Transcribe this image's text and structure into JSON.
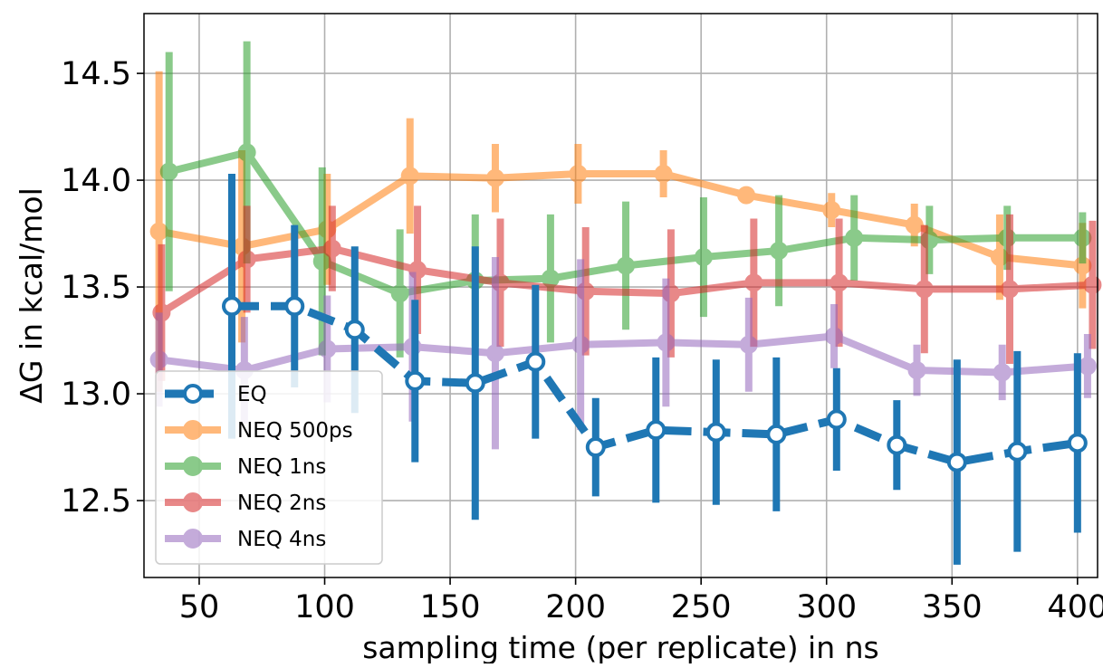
{
  "chart_data": {
    "type": "line",
    "title": "",
    "xlabel": "sampling time (per replicate) in ns",
    "ylabel": "ΔG in kcal/mol",
    "xlim": [
      28,
      408
    ],
    "ylim": [
      12.14,
      14.78
    ],
    "xticks": [
      50,
      100,
      150,
      200,
      250,
      300,
      350,
      400
    ],
    "yticks": [
      12.5,
      13.0,
      13.5,
      14.0,
      14.5
    ],
    "xtick_labels": [
      "50",
      "100",
      "150",
      "200",
      "250",
      "300",
      "350",
      "400"
    ],
    "ytick_labels": [
      "12.5",
      "13.0",
      "13.5",
      "14.0",
      "14.5"
    ],
    "grid": true,
    "legend_position": "lower-left",
    "series": [
      {
        "name": "EQ",
        "color": "#1f77b4",
        "linestyle": "dashed",
        "x": [
          63,
          88,
          112,
          136,
          160,
          184,
          208,
          232,
          256,
          280,
          304,
          328,
          352,
          376,
          400
        ],
        "y": [
          13.41,
          13.41,
          13.3,
          13.06,
          13.05,
          13.15,
          12.75,
          12.83,
          12.82,
          12.81,
          12.88,
          12.76,
          12.68,
          12.73,
          12.77
        ],
        "err": [
          0.62,
          0.38,
          0.39,
          0.38,
          0.64,
          0.36,
          0.23,
          0.34,
          0.34,
          0.36,
          0.24,
          0.21,
          0.48,
          0.47,
          0.42
        ]
      },
      {
        "name": "NEQ 500ps",
        "color": "#ff7f0e",
        "linestyle": "solid",
        "x": [
          34,
          67,
          101,
          134,
          168,
          201,
          235,
          268,
          302,
          335,
          369,
          402
        ],
        "y": [
          13.76,
          13.69,
          13.77,
          14.02,
          14.01,
          14.03,
          14.03,
          13.93,
          13.86,
          13.79,
          13.64,
          13.6
        ],
        "err": [
          0.75,
          0.45,
          0.26,
          0.27,
          0.16,
          0.14,
          0.11,
          0.03,
          0.08,
          0.1,
          0.2,
          0.2
        ]
      },
      {
        "name": "NEQ 1ns",
        "color": "#2ca02c",
        "linestyle": "solid",
        "x": [
          38,
          69,
          99,
          130,
          160,
          190,
          220,
          251,
          281,
          311,
          341,
          372,
          402
        ],
        "y": [
          14.04,
          14.13,
          13.62,
          13.47,
          13.53,
          13.54,
          13.6,
          13.64,
          13.67,
          13.73,
          13.72,
          13.73,
          13.73
        ],
        "err": [
          0.56,
          0.52,
          0.44,
          0.3,
          0.31,
          0.3,
          0.3,
          0.28,
          0.26,
          0.2,
          0.16,
          0.15,
          0.12
        ]
      },
      {
        "name": "NEQ 2ns",
        "color": "#d62728",
        "linestyle": "solid",
        "x": [
          35,
          69,
          103,
          137,
          170,
          204,
          238,
          271,
          305,
          339,
          373,
          406
        ],
        "y": [
          13.38,
          13.63,
          13.68,
          13.58,
          13.52,
          13.48,
          13.47,
          13.52,
          13.52,
          13.49,
          13.49,
          13.51
        ],
        "err": [
          0.32,
          0.25,
          0.2,
          0.3,
          0.3,
          0.3,
          0.3,
          0.3,
          0.3,
          0.3,
          0.35,
          0.3
        ]
      },
      {
        "name": "NEQ 4ns",
        "color": "#9467bd",
        "linestyle": "solid",
        "x": [
          34,
          68,
          101,
          135,
          168,
          202,
          236,
          269,
          303,
          336,
          370,
          404
        ],
        "y": [
          13.16,
          13.11,
          13.21,
          13.22,
          13.19,
          13.23,
          13.24,
          13.23,
          13.27,
          13.11,
          13.1,
          13.13
        ],
        "err": [
          0.22,
          0.25,
          0.25,
          0.35,
          0.45,
          0.4,
          0.3,
          0.22,
          0.15,
          0.12,
          0.13,
          0.15
        ]
      }
    ]
  }
}
